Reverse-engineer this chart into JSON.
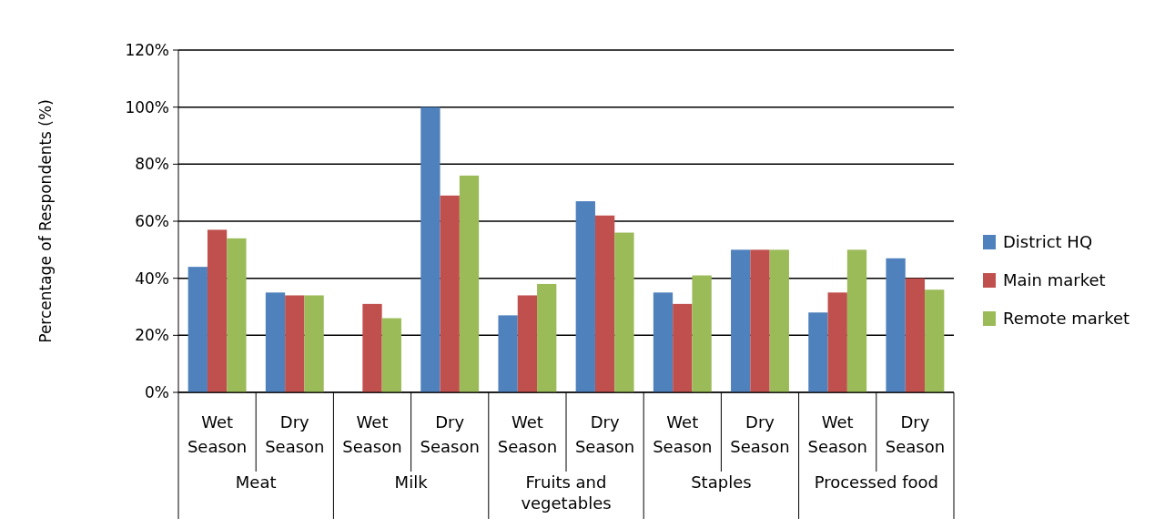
{
  "chart_data": {
    "type": "bar",
    "ylabel": "Percentage of Respondents (%)",
    "categories": [
      "Wet Season",
      "Dry Season",
      "Wet Season",
      "Dry Season",
      "Wet Season",
      "Dry Season",
      "Wet Season",
      "Dry Season",
      "Wet Season",
      "Dry Season"
    ],
    "annotations": [
      "Meat",
      "Milk",
      "Fruits and vegetables",
      "Staples",
      "Processed food"
    ],
    "series": [
      {
        "name": "District HQ",
        "color": "#4f81bd",
        "values": [
          44,
          35,
          0,
          100,
          27,
          67,
          35,
          50,
          28,
          47
        ]
      },
      {
        "name": "Main market",
        "color": "#c0504d",
        "values": [
          57,
          34,
          31,
          69,
          34,
          62,
          31,
          50,
          35,
          40
        ]
      },
      {
        "name": "Remote market",
        "color": "#9bbb59",
        "values": [
          54,
          34,
          26,
          76,
          38,
          56,
          41,
          50,
          50,
          36
        ]
      }
    ],
    "ylim": [
      0,
      120
    ],
    "yticks": [
      {
        "value": 0,
        "label": "0%"
      },
      {
        "value": 20,
        "label": "20%"
      },
      {
        "value": 40,
        "label": "40%"
      },
      {
        "value": 60,
        "label": "60%"
      },
      {
        "value": 80,
        "label": "80%"
      },
      {
        "value": 100,
        "label": "100%"
      },
      {
        "value": 120,
        "label": "120%"
      }
    ],
    "grid": "y",
    "legend": "right"
  }
}
